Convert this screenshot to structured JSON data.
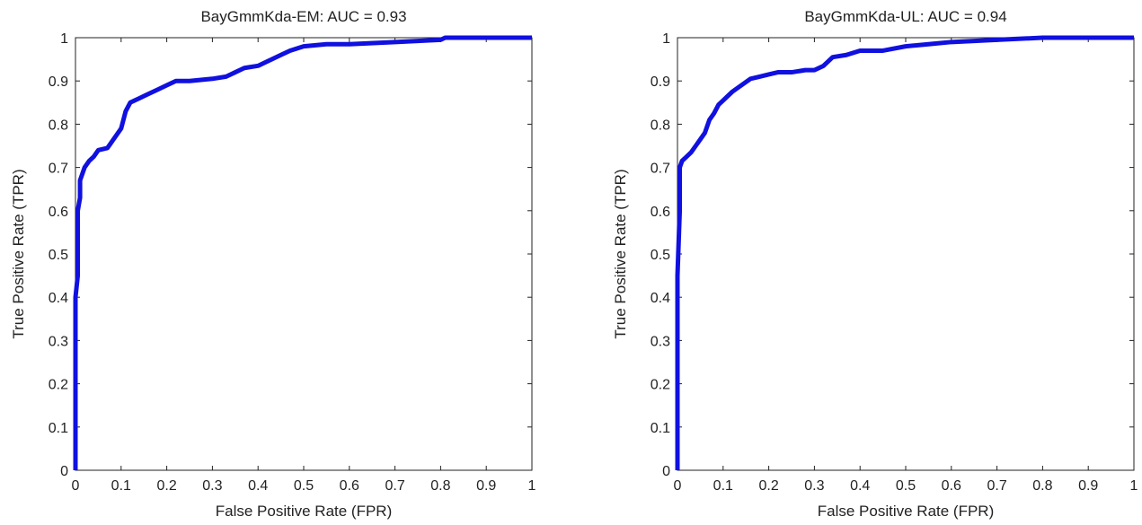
{
  "chart_data": [
    {
      "type": "line",
      "title": "BayGmmKda-EM: AUC = 0.93",
      "xlabel": "False Positive Rate (FPR)",
      "ylabel": "True Positive Rate (TPR)",
      "xlim": [
        0,
        1
      ],
      "ylim": [
        0,
        1
      ],
      "xticks": [
        "0",
        "0.1",
        "0.2",
        "0.3",
        "0.4",
        "0.5",
        "0.6",
        "0.7",
        "0.8",
        "0.9",
        "1"
      ],
      "yticks": [
        "0",
        "0.1",
        "0.2",
        "0.3",
        "0.4",
        "0.5",
        "0.6",
        "0.7",
        "0.8",
        "0.9",
        "1"
      ],
      "grid": false,
      "color": "#1010e0",
      "x": [
        0,
        0,
        0.005,
        0.005,
        0.01,
        0.01,
        0.02,
        0.03,
        0.04,
        0.05,
        0.07,
        0.08,
        0.09,
        0.1,
        0.11,
        0.12,
        0.14,
        0.16,
        0.18,
        0.2,
        0.22,
        0.25,
        0.3,
        0.33,
        0.35,
        0.37,
        0.4,
        0.42,
        0.45,
        0.47,
        0.5,
        0.55,
        0.6,
        0.7,
        0.8,
        0.81,
        1
      ],
      "y": [
        0,
        0.4,
        0.45,
        0.6,
        0.63,
        0.67,
        0.7,
        0.715,
        0.725,
        0.74,
        0.745,
        0.76,
        0.775,
        0.79,
        0.83,
        0.85,
        0.86,
        0.87,
        0.88,
        0.89,
        0.9,
        0.9,
        0.905,
        0.91,
        0.92,
        0.93,
        0.935,
        0.945,
        0.96,
        0.97,
        0.98,
        0.985,
        0.985,
        0.99,
        0.995,
        1,
        1
      ]
    },
    {
      "type": "line",
      "title": "BayGmmKda-UL: AUC = 0.94",
      "xlabel": "False Positive Rate (FPR)",
      "ylabel": "True Positive Rate (TPR)",
      "xlim": [
        0,
        1
      ],
      "ylim": [
        0,
        1
      ],
      "xticks": [
        "0",
        "0.1",
        "0.2",
        "0.3",
        "0.4",
        "0.5",
        "0.6",
        "0.7",
        "0.8",
        "0.9",
        "1"
      ],
      "yticks": [
        "0",
        "0.1",
        "0.2",
        "0.3",
        "0.4",
        "0.5",
        "0.6",
        "0.7",
        "0.8",
        "0.9",
        "1"
      ],
      "grid": false,
      "color": "#1010e0",
      "x": [
        0,
        0,
        0.005,
        0.005,
        0.01,
        0.02,
        0.03,
        0.04,
        0.05,
        0.06,
        0.07,
        0.08,
        0.09,
        0.1,
        0.12,
        0.14,
        0.16,
        0.18,
        0.2,
        0.22,
        0.25,
        0.28,
        0.3,
        0.32,
        0.34,
        0.37,
        0.4,
        0.45,
        0.5,
        0.55,
        0.6,
        0.7,
        0.8,
        1
      ],
      "y": [
        0,
        0.45,
        0.6,
        0.7,
        0.715,
        0.725,
        0.735,
        0.75,
        0.765,
        0.78,
        0.81,
        0.825,
        0.845,
        0.855,
        0.875,
        0.89,
        0.905,
        0.91,
        0.915,
        0.92,
        0.92,
        0.925,
        0.925,
        0.935,
        0.955,
        0.96,
        0.97,
        0.97,
        0.98,
        0.985,
        0.99,
        0.995,
        1,
        1
      ]
    }
  ]
}
